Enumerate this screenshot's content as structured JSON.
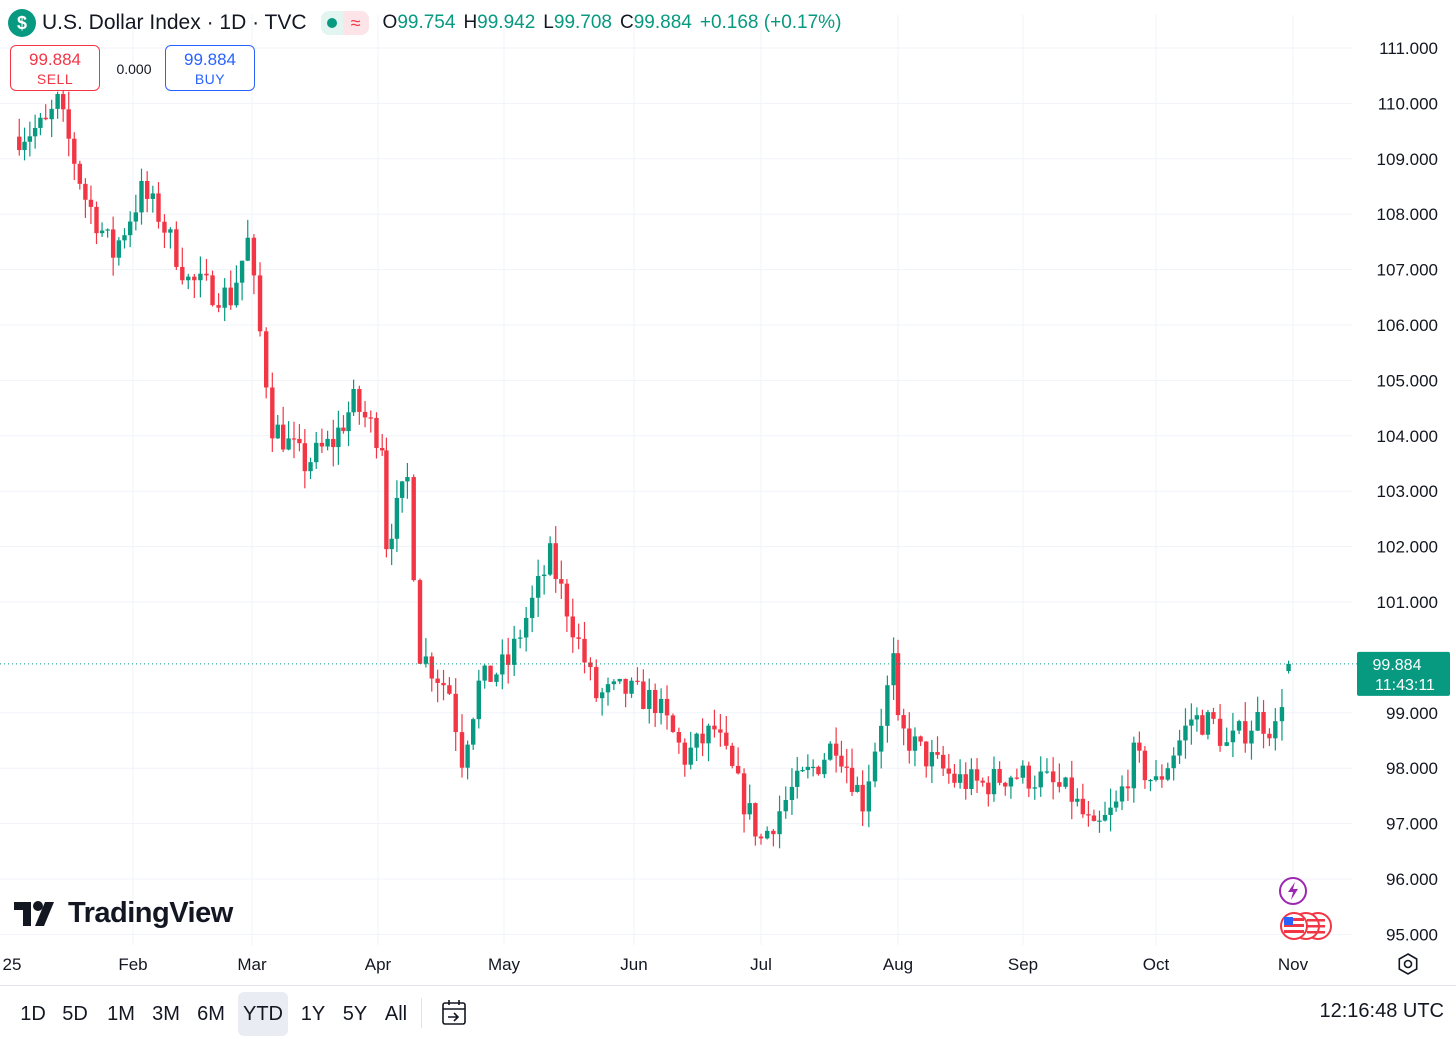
{
  "header": {
    "title": "U.S. Dollar Index · 1D · TVC",
    "open_label": "O",
    "open": "99.754",
    "high_label": "H",
    "high": "99.942",
    "low_label": "L",
    "low": "99.708",
    "close_label": "C",
    "close": "99.884",
    "change": "+0.168 (+0.17%)"
  },
  "trade": {
    "sell_price": "99.884",
    "sell_label": "SELL",
    "spread": "0.000",
    "buy_price": "99.884",
    "buy_label": "BUY"
  },
  "branding": {
    "logo_text": "TradingView"
  },
  "ranges": [
    "1D",
    "5D",
    "1M",
    "3M",
    "6M",
    "YTD",
    "1Y",
    "5Y",
    "All"
  ],
  "selected_range": "YTD",
  "clock": "12:16:48 UTC",
  "colors": {
    "up": "#089981",
    "down": "#f23645",
    "grid": "#f0f3fa",
    "sell": "#f23645",
    "buy": "#2962ff"
  },
  "icons": [
    "dollar-icon",
    "calendar-range-icon",
    "settings-icon",
    "lightning-icon",
    "us-flag-icon"
  ],
  "chart_data": {
    "type": "candlestick",
    "title": "U.S. Dollar Index",
    "interval": "1D",
    "y_ticks": [
      "111.000",
      "110.000",
      "109.000",
      "108.000",
      "107.000",
      "106.000",
      "105.000",
      "104.000",
      "103.000",
      "102.000",
      "101.000",
      "99.000",
      "98.000",
      "97.000",
      "96.000",
      "95.000"
    ],
    "x_ticks": [
      "25",
      "Feb",
      "Mar",
      "Apr",
      "May",
      "Jun",
      "Jul",
      "Aug",
      "Sep",
      "Oct",
      "Nov"
    ],
    "ylim": [
      94.7,
      111.4
    ],
    "last_price": "99.884",
    "countdown": "11:43:11",
    "anchors": [
      {
        "date": "2025-01-02",
        "close": 109.4
      },
      {
        "date": "2025-01-10",
        "close": 109.6
      },
      {
        "date": "2025-01-13",
        "close": 110.0
      },
      {
        "date": "2025-01-20",
        "close": 108.3
      },
      {
        "date": "2025-01-27",
        "close": 107.3
      },
      {
        "date": "2025-02-03",
        "close": 108.4
      },
      {
        "date": "2025-02-07",
        "close": 108.0
      },
      {
        "date": "2025-02-14",
        "close": 106.8
      },
      {
        "date": "2025-02-24",
        "close": 106.5
      },
      {
        "date": "2025-02-28",
        "close": 107.5
      },
      {
        "date": "2025-03-06",
        "close": 104.2
      },
      {
        "date": "2025-03-14",
        "close": 103.5
      },
      {
        "date": "2025-03-21",
        "close": 103.9
      },
      {
        "date": "2025-03-26",
        "close": 104.6
      },
      {
        "date": "2025-04-02",
        "close": 103.9
      },
      {
        "date": "2025-04-03",
        "close": 102.1
      },
      {
        "date": "2025-04-08",
        "close": 103.2
      },
      {
        "date": "2025-04-11",
        "close": 100.1
      },
      {
        "date": "2025-04-18",
        "close": 99.4
      },
      {
        "date": "2025-04-21",
        "close": 98.2
      },
      {
        "date": "2025-04-25",
        "close": 99.5
      },
      {
        "date": "2025-05-02",
        "close": 99.9
      },
      {
        "date": "2025-05-12",
        "close": 101.8
      },
      {
        "date": "2025-05-16",
        "close": 100.9
      },
      {
        "date": "2025-05-23",
        "close": 99.3
      },
      {
        "date": "2025-05-30",
        "close": 99.4
      },
      {
        "date": "2025-06-06",
        "close": 99.2
      },
      {
        "date": "2025-06-13",
        "close": 98.2
      },
      {
        "date": "2025-06-20",
        "close": 98.7
      },
      {
        "date": "2025-06-27",
        "close": 97.4
      },
      {
        "date": "2025-07-01",
        "close": 96.7
      },
      {
        "date": "2025-07-08",
        "close": 97.6
      },
      {
        "date": "2025-07-14",
        "close": 98.1
      },
      {
        "date": "2025-07-18",
        "close": 98.5
      },
      {
        "date": "2025-07-24",
        "close": 97.4
      },
      {
        "date": "2025-07-31",
        "close": 99.9
      },
      {
        "date": "2025-08-01",
        "close": 98.7
      },
      {
        "date": "2025-08-08",
        "close": 98.2
      },
      {
        "date": "2025-08-15",
        "close": 97.8
      },
      {
        "date": "2025-08-22",
        "close": 97.7
      },
      {
        "date": "2025-08-29",
        "close": 97.9
      },
      {
        "date": "2025-09-05",
        "close": 97.8
      },
      {
        "date": "2025-09-12",
        "close": 97.5
      },
      {
        "date": "2025-09-17",
        "close": 96.8
      },
      {
        "date": "2025-09-22",
        "close": 97.3
      },
      {
        "date": "2025-09-26",
        "close": 98.2
      },
      {
        "date": "2025-10-01",
        "close": 97.7
      },
      {
        "date": "2025-10-09",
        "close": 98.9
      },
      {
        "date": "2025-10-14",
        "close": 98.8
      },
      {
        "date": "2025-10-17",
        "close": 98.4
      },
      {
        "date": "2025-10-24",
        "close": 98.9
      },
      {
        "date": "2025-10-28",
        "close": 98.7
      },
      {
        "date": "2025-10-31",
        "close": 99.884
      }
    ]
  }
}
